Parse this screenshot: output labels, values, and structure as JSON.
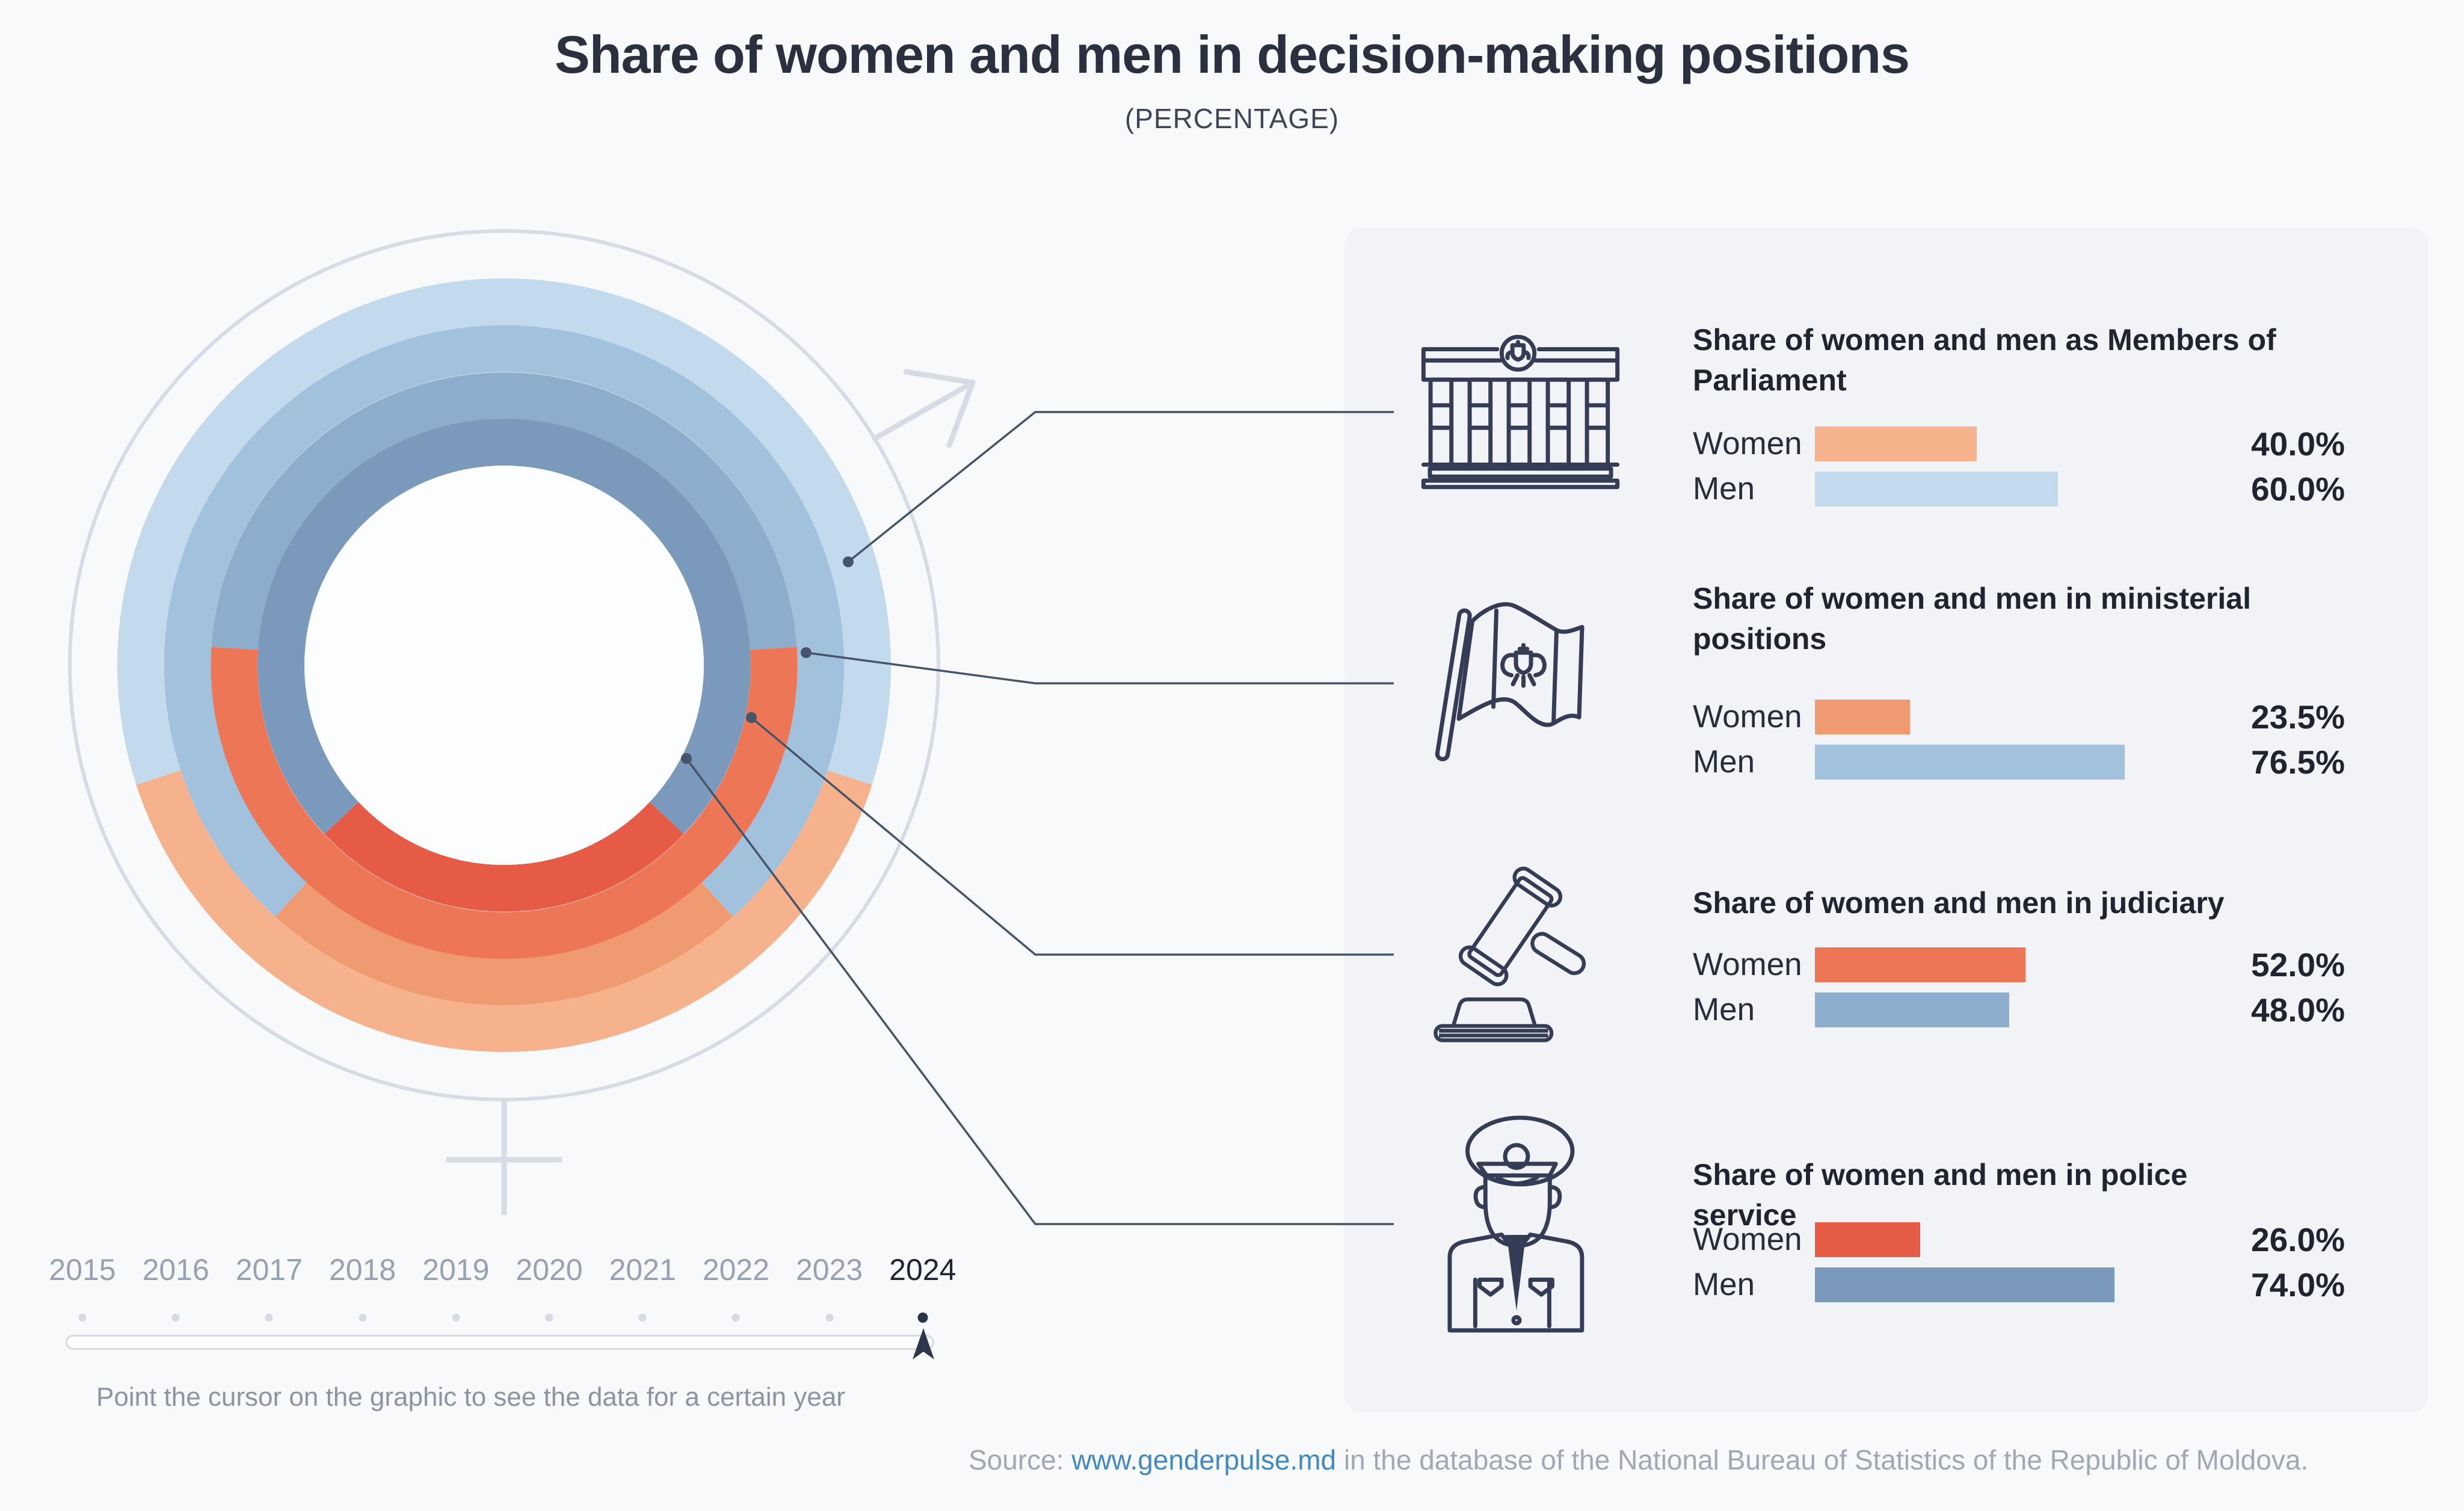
{
  "header": {
    "title": "Share of women and men in decision-making positions",
    "subtitle": "(PERCENTAGE)"
  },
  "chart_data": {
    "type": "donut",
    "description": "Four concentric rings; women share (orange) centered at bottom, men share (blue) on top; rings outer to inner follow category order",
    "unit": "percent",
    "selected_year": "2024",
    "years": [
      "2015",
      "2016",
      "2017",
      "2018",
      "2019",
      "2020",
      "2021",
      "2022",
      "2023",
      "2024"
    ],
    "women_label": "Women",
    "men_label": "Men",
    "categories": [
      {
        "id": "parliament",
        "title": "Share of women and men as Members of Parliament",
        "women_pct": 40.0,
        "men_pct": 60.0,
        "women_value": "40.0%",
        "men_value": "60.0%",
        "women_color": "#F6B28C",
        "men_color": "#C3DAEC"
      },
      {
        "id": "ministerial",
        "title": "Share of women and men in ministerial positions",
        "women_pct": 23.5,
        "men_pct": 76.5,
        "women_value": "23.5%",
        "men_value": "76.5%",
        "women_color": "#F09A72",
        "men_color": "#A2C1DC"
      },
      {
        "id": "judiciary",
        "title": "Share of women and men in judiciary",
        "women_pct": 52.0,
        "men_pct": 48.0,
        "women_value": "52.0%",
        "men_value": "48.0%",
        "women_color": "#EC7656",
        "men_color": "#8CADCB"
      },
      {
        "id": "police",
        "title": "Share of women and men in police service",
        "women_pct": 26.0,
        "men_pct": 74.0,
        "women_value": "26.0%",
        "men_value": "74.0%",
        "women_color": "#E65B45",
        "men_color": "#7B99BA"
      }
    ]
  },
  "timeline": {
    "years": [
      "2015",
      "2016",
      "2017",
      "2018",
      "2019",
      "2020",
      "2021",
      "2022",
      "2023",
      "2024"
    ],
    "selected": "2024",
    "hint": "Point the cursor on the graphic to see the data for a certain year"
  },
  "source": {
    "prefix": "Source: ",
    "link": "www.genderpulse.md",
    "suffix": " in the database of the National Bureau of Statistics of the Republic of Moldova."
  }
}
